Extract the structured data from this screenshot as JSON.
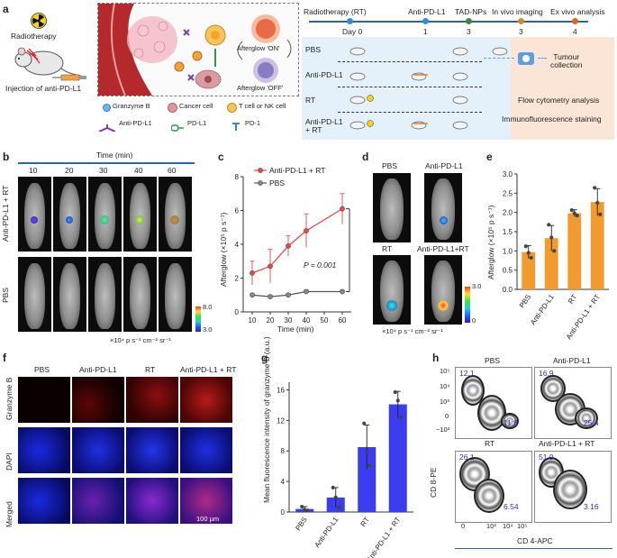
{
  "panel_a": {
    "letter": "a",
    "radiotherapy_label": "Radiotherapy",
    "injection_label": "Injection of anti-PD-L1",
    "afterglow_on": "Afterglow 'ON'",
    "afterglow_off": "Afterglow 'OFF'",
    "legend": {
      "granzyme": "Granzyme B",
      "cancer": "Cancer cell",
      "tcell": "T cell or NK cell",
      "antipdl1": "Anti-PD-L1",
      "pdl1": "PD-L1",
      "pd1": "PD-1"
    },
    "timeline": {
      "headers": [
        "Radiotherapy (RT)",
        "Anti-PD-L1",
        "TAD-NPs",
        "In vivo imaging",
        "Ex vivo analysis"
      ],
      "days": [
        "Day 0",
        "1",
        "3",
        "3",
        "4"
      ],
      "groups": [
        "PBS",
        "Anti-PD-L1",
        "RT",
        "Anti-PD-L1\n+ RT"
      ],
      "tumour_collection": "Tumour\ncollection",
      "flow": "Flow cytometry analysis",
      "immuno": "Immunofluorescence staining"
    }
  },
  "panel_b": {
    "letter": "b",
    "time_title": "Time (min)",
    "times": [
      "10",
      "20",
      "30",
      "40",
      "60"
    ],
    "row1": "Anti-PD-L1 + RT",
    "row2": "PBS",
    "scale_max": "8.0",
    "scale_min": "3.0",
    "unit": "×10⁴ p s⁻¹ cm⁻² sr⁻¹"
  },
  "panel_c": {
    "letter": "c",
    "chart_data": {
      "type": "line",
      "xlabel": "Time (min)",
      "ylabel": "Afterglow (×10⁵ p s⁻¹)",
      "xlim": [
        5,
        65
      ],
      "ylim": [
        0,
        8
      ],
      "x_ticks": [
        10,
        20,
        30,
        40,
        50,
        60
      ],
      "y_ticks": [
        0,
        2,
        4,
        6,
        8
      ],
      "series": [
        {
          "name": "Anti-PD-L1 + RT",
          "color": "#e84a4a",
          "x": [
            10,
            20,
            30,
            40,
            60
          ],
          "y": [
            2.3,
            2.7,
            3.9,
            4.8,
            6.1
          ],
          "err": [
            0.7,
            1.0,
            0.6,
            1.0,
            0.9
          ]
        },
        {
          "name": "PBS",
          "color": "#555555",
          "x": [
            10,
            20,
            30,
            40,
            60
          ],
          "y": [
            1.0,
            0.9,
            1.0,
            1.2,
            1.2
          ],
          "err": [
            0.1,
            0.1,
            0.1,
            0.1,
            0.1
          ]
        }
      ],
      "annotation": "P = 0.001"
    }
  },
  "panel_d": {
    "letter": "d",
    "labels": [
      "PBS",
      "Anti-PD-L1",
      "RT",
      "Anti-PD-L1+RT"
    ],
    "scale_max": "3.0",
    "scale_min": "0",
    "unit": "×10⁴ p s⁻¹ cm⁻² sr⁻¹"
  },
  "panel_e": {
    "letter": "e",
    "chart_data": {
      "type": "bar",
      "categories": [
        "PBS",
        "Anti-PD-L1",
        "RT",
        "Anti-PD-L1 + RT"
      ],
      "values": [
        0.97,
        1.33,
        1.98,
        2.27
      ],
      "errors": [
        0.17,
        0.33,
        0.09,
        0.35
      ],
      "points": [
        [
          1.12,
          0.95,
          0.82
        ],
        [
          1.68,
          1.35,
          1.0
        ],
        [
          2.06,
          1.98,
          1.92
        ],
        [
          2.64,
          2.25,
          1.95
        ]
      ],
      "ylabel": "Afterglow (×10⁵ p s⁻¹)",
      "ylim": [
        0,
        3.0
      ],
      "y_ticks": [
        0,
        0.5,
        1.0,
        1.5,
        2.0,
        2.5,
        3.0
      ],
      "color": "#f39a2e"
    }
  },
  "panel_f": {
    "letter": "f",
    "cols": [
      "PBS",
      "Anti-PD-L1",
      "RT",
      "Anti-PD-L1 + RT"
    ],
    "rows": [
      "Granzyme B",
      "DAPI",
      "Merged"
    ],
    "scalebar": "100 µm"
  },
  "panel_g": {
    "letter": "g",
    "chart_data": {
      "type": "bar",
      "categories": [
        "PBS",
        "Anti-PD-L1",
        "RT",
        "Anti-PD-L1 + RT"
      ],
      "values": [
        0.4,
        1.9,
        8.5,
        14.1
      ],
      "errors": [
        0.3,
        1.3,
        2.9,
        1.7
      ],
      "points": [
        [
          0.7,
          0.3,
          0.2
        ],
        [
          3.2,
          1.9,
          0.6
        ],
        [
          11.6,
          7.8,
          6.1
        ],
        [
          15.7,
          14.6,
          12.4
        ]
      ],
      "ylabel": "Mean fluorescence intensity of granzyme B (a.u.)",
      "ylim": [
        0,
        17
      ],
      "y_ticks": [
        0,
        4,
        8,
        12,
        16
      ],
      "color": "#3b3bf0"
    }
  },
  "panel_h": {
    "letter": "h",
    "titles": [
      "PBS",
      "Anti-PD-L1",
      "RT",
      "Anti-PD-L1 + RT"
    ],
    "upper_left": [
      "12.1",
      "16.9",
      "26.1",
      "51.9"
    ],
    "lower_right": [
      "11.8",
      "25.4",
      "6.54",
      "3.16"
    ],
    "ylabel": "CD 8-PE",
    "xlabel": "CD 4-APC",
    "y_ticks": [
      "10⁵",
      "10⁴",
      "10³",
      "0",
      "−10³"
    ],
    "x_ticks": [
      "0",
      "10³",
      "10⁴",
      "10⁵"
    ]
  }
}
